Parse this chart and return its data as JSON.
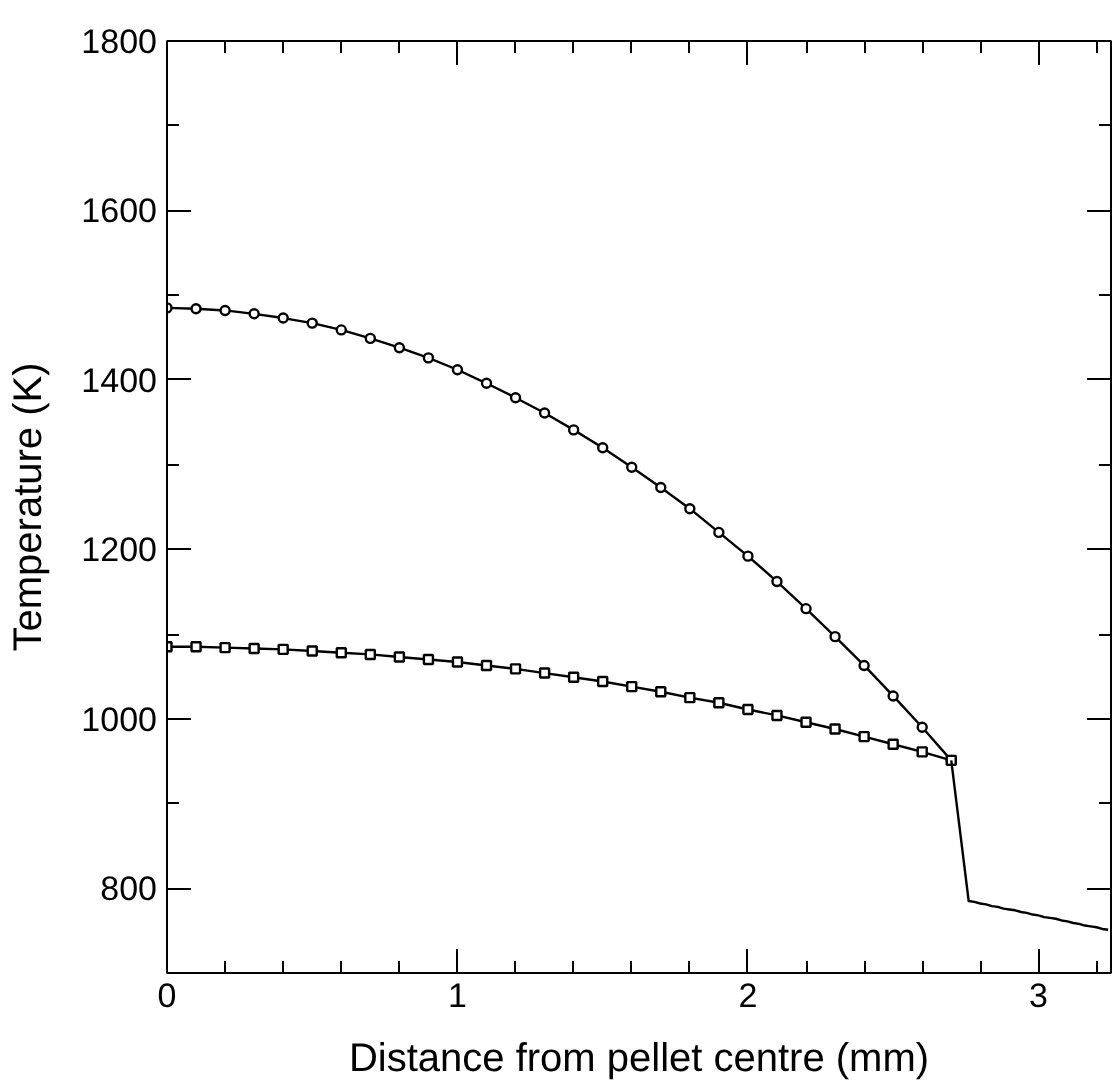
{
  "chart_data": {
    "type": "line",
    "xlabel": "Distance from pellet centre (mm)",
    "ylabel": "Temperature (K)",
    "xlim": [
      0,
      3.25
    ],
    "ylim": [
      700,
      1800
    ],
    "xticks": [
      0,
      {
        "value": 0.2,
        "label": null
      },
      {
        "value": 0.4,
        "label": null
      },
      {
        "value": 0.6,
        "label": null
      },
      {
        "value": 0.8,
        "label": null
      },
      1,
      {
        "value": 1.2,
        "label": null
      },
      {
        "value": 1.4,
        "label": null
      },
      {
        "value": 1.6,
        "label": null
      },
      {
        "value": 1.8,
        "label": null
      },
      2,
      {
        "value": 2.2,
        "label": null
      },
      {
        "value": 2.4,
        "label": null
      },
      {
        "value": 2.6,
        "label": null
      },
      {
        "value": 2.8,
        "label": null
      },
      3,
      {
        "value": 3.2,
        "label": null
      }
    ],
    "yticks": [
      {
        "value": 700,
        "label": null
      },
      800,
      {
        "value": 900,
        "label": null
      },
      1000,
      {
        "value": 1100,
        "label": null
      },
      1200,
      {
        "value": 1300,
        "label": null
      },
      1400,
      {
        "value": 1500,
        "label": null
      },
      1600,
      {
        "value": 1700,
        "label": null
      },
      1800
    ],
    "grid": false,
    "series": [
      {
        "color": "#000000",
        "marker": "circle",
        "x": [
          0,
          0.1,
          0.2,
          0.3,
          0.4,
          0.5,
          0.6,
          0.7,
          0.8,
          0.9,
          1.0,
          1.1,
          1.2,
          1.3,
          1.4,
          1.5,
          1.6,
          1.7,
          1.8,
          1.9,
          2.0,
          2.1,
          2.2,
          2.3,
          2.4,
          2.5,
          2.6,
          2.7
        ],
        "values": [
          1485,
          1484,
          1482,
          1478,
          1473,
          1467,
          1459,
          1449,
          1438,
          1426,
          1412,
          1396,
          1379,
          1361,
          1341,
          1320,
          1297,
          1273,
          1248,
          1220,
          1192,
          1162,
          1130,
          1097,
          1063,
          1027,
          990,
          951
        ]
      },
      {
        "color": "#000000",
        "marker": "square",
        "x": [
          0,
          0.1,
          0.2,
          0.3,
          0.4,
          0.5,
          0.6,
          0.7,
          0.8,
          0.9,
          1.0,
          1.1,
          1.2,
          1.3,
          1.4,
          1.5,
          1.6,
          1.7,
          1.8,
          1.9,
          2.0,
          2.1,
          2.2,
          2.3,
          2.4,
          2.5,
          2.6,
          2.7
        ],
        "values": [
          1085,
          1085,
          1084,
          1083,
          1082,
          1080,
          1078,
          1076,
          1073,
          1070,
          1067,
          1063,
          1059,
          1054,
          1049,
          1044,
          1038,
          1032,
          1025,
          1019,
          1011,
          1004,
          996,
          988,
          979,
          970,
          961,
          951
        ]
      },
      {
        "color": "#000000",
        "x": [
          2.7,
          2.76,
          2.78,
          2.8,
          2.82,
          2.84,
          2.86,
          2.88,
          2.9,
          2.92,
          2.94,
          2.96,
          2.98,
          3.0,
          3.02,
          3.04,
          3.06,
          3.08,
          3.1,
          3.12,
          3.14,
          3.16,
          3.18,
          3.2,
          3.22,
          3.24
        ],
        "values": [
          951,
          785,
          784,
          782,
          781,
          779,
          778,
          776,
          775,
          774,
          772,
          771,
          769,
          768,
          766,
          765,
          764,
          762,
          761,
          759,
          758,
          756,
          755,
          754,
          752,
          751
        ]
      }
    ]
  }
}
